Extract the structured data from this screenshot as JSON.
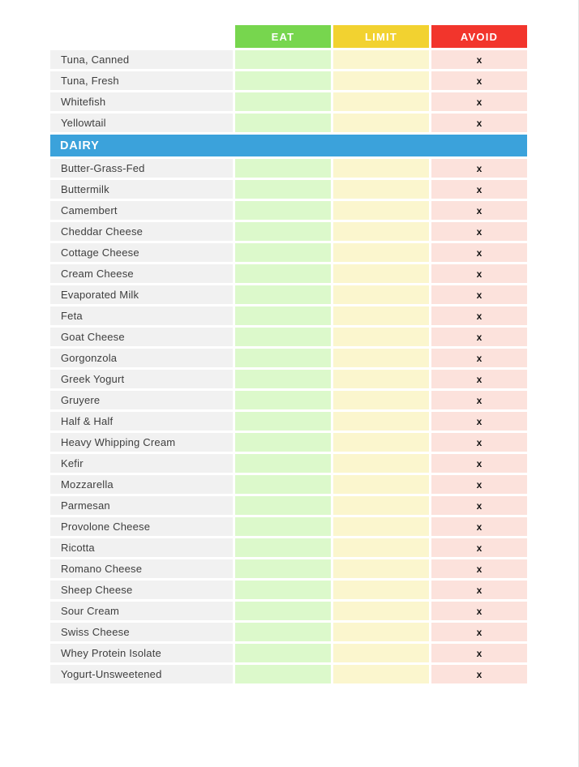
{
  "page": {
    "background": "#ffffff",
    "edge_line_color": "#e3e3e3"
  },
  "table": {
    "marker": "x",
    "colors": {
      "label_bg": "#F1F1F1",
      "text": "#3E3E3E",
      "marker_color": "#141414",
      "header_text": "#FFFFFF",
      "section_bg": "#3BA2DB",
      "section_text": "#FFFFFF",
      "eat_header": "#77D64E",
      "eat_cell": "#DCF9CB",
      "limit_header": "#F2D230",
      "limit_cell": "#FBF6CE",
      "avoid_header": "#F2352C",
      "avoid_cell": "#FCE2DC",
      "edge_line": "#E3E3E3"
    },
    "columns": [
      {
        "key": "eat",
        "label": "EAT"
      },
      {
        "key": "limit",
        "label": "LIMIT"
      },
      {
        "key": "avoid",
        "label": "AVOID"
      }
    ],
    "sections": [
      {
        "title": "",
        "rows": [
          {
            "name": "Tuna, Canned",
            "eat": false,
            "limit": false,
            "avoid": true
          },
          {
            "name": "Tuna, Fresh",
            "eat": false,
            "limit": false,
            "avoid": true
          },
          {
            "name": "Whitefish",
            "eat": false,
            "limit": false,
            "avoid": true
          },
          {
            "name": "Yellowtail",
            "eat": false,
            "limit": false,
            "avoid": true
          }
        ]
      },
      {
        "title": "DAIRY",
        "rows": [
          {
            "name": "Butter-Grass-Fed",
            "eat": false,
            "limit": false,
            "avoid": true
          },
          {
            "name": "Buttermilk",
            "eat": false,
            "limit": false,
            "avoid": true
          },
          {
            "name": "Camembert",
            "eat": false,
            "limit": false,
            "avoid": true
          },
          {
            "name": "Cheddar Cheese",
            "eat": false,
            "limit": false,
            "avoid": true
          },
          {
            "name": "Cottage Cheese",
            "eat": false,
            "limit": false,
            "avoid": true
          },
          {
            "name": "Cream Cheese",
            "eat": false,
            "limit": false,
            "avoid": true
          },
          {
            "name": "Evaporated Milk",
            "eat": false,
            "limit": false,
            "avoid": true
          },
          {
            "name": "Feta",
            "eat": false,
            "limit": false,
            "avoid": true
          },
          {
            "name": "Goat Cheese",
            "eat": false,
            "limit": false,
            "avoid": true
          },
          {
            "name": "Gorgonzola",
            "eat": false,
            "limit": false,
            "avoid": true
          },
          {
            "name": "Greek Yogurt",
            "eat": false,
            "limit": false,
            "avoid": true
          },
          {
            "name": "Gruyere",
            "eat": false,
            "limit": false,
            "avoid": true
          },
          {
            "name": "Half & Half",
            "eat": false,
            "limit": false,
            "avoid": true
          },
          {
            "name": "Heavy Whipping Cream",
            "eat": false,
            "limit": false,
            "avoid": true
          },
          {
            "name": "Kefir",
            "eat": false,
            "limit": false,
            "avoid": true
          },
          {
            "name": "Mozzarella",
            "eat": false,
            "limit": false,
            "avoid": true
          },
          {
            "name": "Parmesan",
            "eat": false,
            "limit": false,
            "avoid": true
          },
          {
            "name": "Provolone Cheese",
            "eat": false,
            "limit": false,
            "avoid": true
          },
          {
            "name": "Ricotta",
            "eat": false,
            "limit": false,
            "avoid": true
          },
          {
            "name": "Romano Cheese",
            "eat": false,
            "limit": false,
            "avoid": true
          },
          {
            "name": "Sheep Cheese",
            "eat": false,
            "limit": false,
            "avoid": true
          },
          {
            "name": "Sour Cream",
            "eat": false,
            "limit": false,
            "avoid": true
          },
          {
            "name": "Swiss Cheese",
            "eat": false,
            "limit": false,
            "avoid": true
          },
          {
            "name": "Whey Protein Isolate",
            "eat": false,
            "limit": false,
            "avoid": true
          },
          {
            "name": "Yogurt-Unsweetened",
            "eat": false,
            "limit": false,
            "avoid": true
          }
        ]
      }
    ]
  }
}
